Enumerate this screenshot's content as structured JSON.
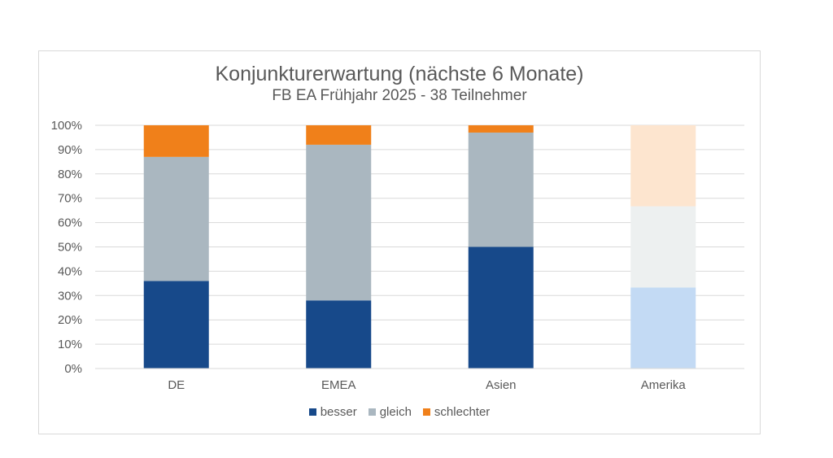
{
  "chart_data": {
    "type": "bar",
    "stacked": true,
    "title": "Konjunkturerwartung (nächste 6 Monate)",
    "subtitle": "FB EA Frühjahr 2025 - 38 Teilnehmer",
    "categories": [
      "DE",
      "EMEA",
      "Asien",
      "Amerika"
    ],
    "series": [
      {
        "name": "besser",
        "values": [
          36,
          28,
          50,
          33.3
        ],
        "color": "#17498a"
      },
      {
        "name": "gleich",
        "values": [
          51,
          64,
          47,
          33.4
        ],
        "color": "#aab7c0"
      },
      {
        "name": "schlechter",
        "values": [
          13,
          8,
          3,
          33.3
        ],
        "color": "#f0801a"
      }
    ],
    "faded_categories": [
      "Amerika"
    ],
    "faded_colors": {
      "besser": "#c3daf4",
      "gleich": "#edf0f0",
      "schlechter": "#fde5cf"
    },
    "ylim": [
      0,
      100
    ],
    "yticks": [
      "0%",
      "10%",
      "20%",
      "30%",
      "40%",
      "50%",
      "60%",
      "70%",
      "80%",
      "90%",
      "100%"
    ],
    "grid": true,
    "legend_position": "bottom"
  }
}
